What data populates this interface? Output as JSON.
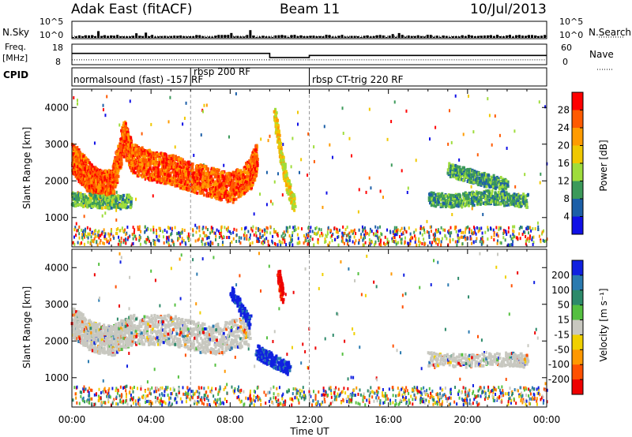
{
  "header": {
    "station": "Adak East (fitACF)",
    "beam": "Beam 11",
    "date": "10/Jul/2013"
  },
  "status_panel": {
    "nsky_label": "N.Sky",
    "nsearch_label": "N.Search",
    "nsky_ticks": [
      "10^5",
      "10^0"
    ],
    "nsearch_ticks": [
      "10^5",
      "10^0"
    ],
    "freq_label_line1": "Freq.",
    "freq_label_line2": "[MHz]",
    "freq_ticks": [
      "18",
      "8"
    ],
    "nave_label": "Nave",
    "nave_ticks": [
      "60",
      "0"
    ],
    "cpid_label": "CPID",
    "cpid_segments": [
      {
        "label": "normalsound (fast) -157 RF",
        "start_hour": 0
      },
      {
        "label": "rbsp 200 RF",
        "start_hour": 6
      },
      {
        "label": "rbsp CT-trig 220 RF",
        "start_hour": 12
      }
    ],
    "freq_steps": [
      {
        "from": 0,
        "to": 10,
        "mhz": 13.5
      },
      {
        "from": 10,
        "to": 12,
        "mhz": 11.5
      },
      {
        "from": 12,
        "to": 24,
        "mhz": 12.5
      }
    ],
    "nave_steps": [
      {
        "from": 0,
        "to": 10,
        "value": 14
      },
      {
        "from": 10,
        "to": 12,
        "value": 14
      },
      {
        "from": 12,
        "to": 24,
        "value": 14
      }
    ]
  },
  "x_axis": {
    "ticks": [
      "00:00",
      "04:00",
      "08:00",
      "12:00",
      "16:00",
      "20:00",
      "00:00"
    ],
    "label": "Time UT"
  },
  "power_colorbar": {
    "label": "Power [dB]",
    "ticks": [
      "28",
      "24",
      "20",
      "16",
      "12",
      "8",
      "4"
    ],
    "colors": [
      "#ff0000",
      "#ff5a00",
      "#ff9b00",
      "#f0c800",
      "#9fdd3c",
      "#3c9a5a",
      "#1c5fa8",
      "#1010e6"
    ]
  },
  "velocity_colorbar": {
    "label": "Velocity [m s⁻¹]",
    "ticks": [
      "200",
      "100",
      "50",
      "15",
      "-15",
      "-50",
      "-100",
      "-200"
    ],
    "colors": [
      "#1020e0",
      "#2a7ab0",
      "#2d8a6a",
      "#55c040",
      "#c8c8c0",
      "#f0d000",
      "#ff9800",
      "#ff5000",
      "#ee0000"
    ]
  },
  "chart_data": [
    {
      "type": "heatmap",
      "title": "Power",
      "xlabel": "",
      "ylabel": "Slant Range [km]",
      "xlim": [
        0,
        24
      ],
      "ylim": [
        200,
        4500
      ],
      "yticks": [
        "1000",
        "2000",
        "3000",
        "4000"
      ],
      "colorbar": "Power [dB]",
      "features": [
        {
          "name": "main echo band",
          "x": [
            0,
            0.5,
            1,
            1.5,
            2,
            2.6,
            3,
            4,
            5,
            6,
            7,
            8,
            9,
            9.3
          ],
          "y": [
            2600,
            2300,
            2000,
            1850,
            1900,
            3200,
            2600,
            2400,
            2300,
            2100,
            1950,
            1800,
            2200,
            2600
          ],
          "power_db": 24
        },
        {
          "name": "lower band",
          "x": [
            0,
            1,
            2,
            3
          ],
          "y": [
            1500,
            1450,
            1400,
            1450
          ],
          "power_db": 10
        },
        {
          "name": "late band",
          "x": [
            18,
            19,
            20,
            21,
            22,
            23
          ],
          "y": [
            1500,
            1450,
            1500,
            1550,
            1500,
            1450
          ],
          "power_db": 8
        },
        {
          "name": "upper late streak",
          "x": [
            19,
            20,
            21,
            22
          ],
          "y": [
            2300,
            2150,
            2000,
            1850
          ],
          "power_db": 8
        },
        {
          "name": "streak near 11 UT",
          "x": [
            10.2,
            10.5,
            10.8,
            11.2
          ],
          "y": [
            3800,
            2800,
            2000,
            1300
          ],
          "power_db": 16
        }
      ]
    },
    {
      "type": "heatmap",
      "title": "Velocity",
      "xlabel": "Time UT",
      "ylabel": "Slant Range [km]",
      "xlim": [
        0,
        24
      ],
      "ylim": [
        200,
        4500
      ],
      "yticks": [
        "1000",
        "2000",
        "3000",
        "4000"
      ],
      "colorbar": "Velocity [m s⁻¹]",
      "features": [
        {
          "name": "ground scatter band",
          "x": [
            0,
            1,
            2,
            3,
            5,
            7,
            9
          ],
          "y": [
            2500,
            2100,
            2000,
            2300,
            2300,
            2000,
            2300
          ],
          "velocity": 0
        },
        {
          "name": "negative-velocity patch",
          "x": [
            8,
            9
          ],
          "y": [
            3300,
            2500
          ],
          "velocity": 200
        },
        {
          "name": "post-9UT blob",
          "x": [
            9.3,
            10,
            11
          ],
          "y": [
            1700,
            1500,
            1200
          ],
          "velocity": 200
        },
        {
          "name": "red streak",
          "x": [
            10.4,
            10.6
          ],
          "y": [
            3800,
            3200
          ],
          "velocity": -200
        },
        {
          "name": "late grey band",
          "x": [
            18,
            20,
            22,
            23
          ],
          "y": [
            1500,
            1450,
            1500,
            1450
          ],
          "velocity": 0
        }
      ]
    }
  ]
}
